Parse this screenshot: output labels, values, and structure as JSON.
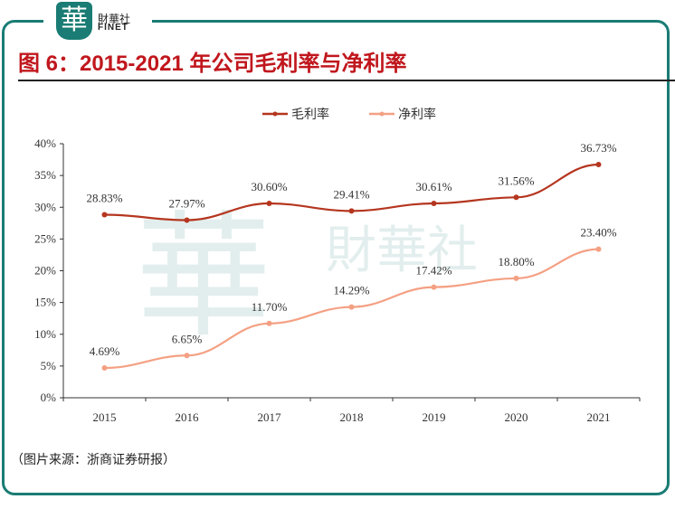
{
  "brand": {
    "logo_char": "華",
    "name_cn": "財華社",
    "name_en": "FINET"
  },
  "title": "图 6：2015-2021 年公司毛利率与净利率",
  "source": "（图片来源：浙商证券研报）",
  "chart_data": {
    "type": "line",
    "title": "图 6：2015-2021 年公司毛利率与净利率",
    "categories": [
      "2015",
      "2016",
      "2017",
      "2018",
      "2019",
      "2020",
      "2021"
    ],
    "ylim": [
      0,
      40
    ],
    "yticks": [
      "0%",
      "5%",
      "10%",
      "15%",
      "20%",
      "25%",
      "30%",
      "35%",
      "40%"
    ],
    "legend_position": "top-center",
    "grid": false,
    "series": [
      {
        "name": "毛利率",
        "color": "#b5361f",
        "values": [
          28.83,
          27.97,
          30.6,
          29.41,
          30.61,
          31.56,
          36.73
        ],
        "labels": [
          "28.83%",
          "27.97%",
          "30.60%",
          "29.41%",
          "30.61%",
          "31.56%",
          "36.73%"
        ]
      },
      {
        "name": "净利率",
        "color": "#f4a083",
        "values": [
          4.69,
          6.65,
          11.7,
          14.29,
          17.42,
          18.8,
          23.4
        ],
        "labels": [
          "4.69%",
          "6.65%",
          "11.70%",
          "14.29%",
          "17.42%",
          "18.80%",
          "23.40%"
        ]
      }
    ]
  }
}
